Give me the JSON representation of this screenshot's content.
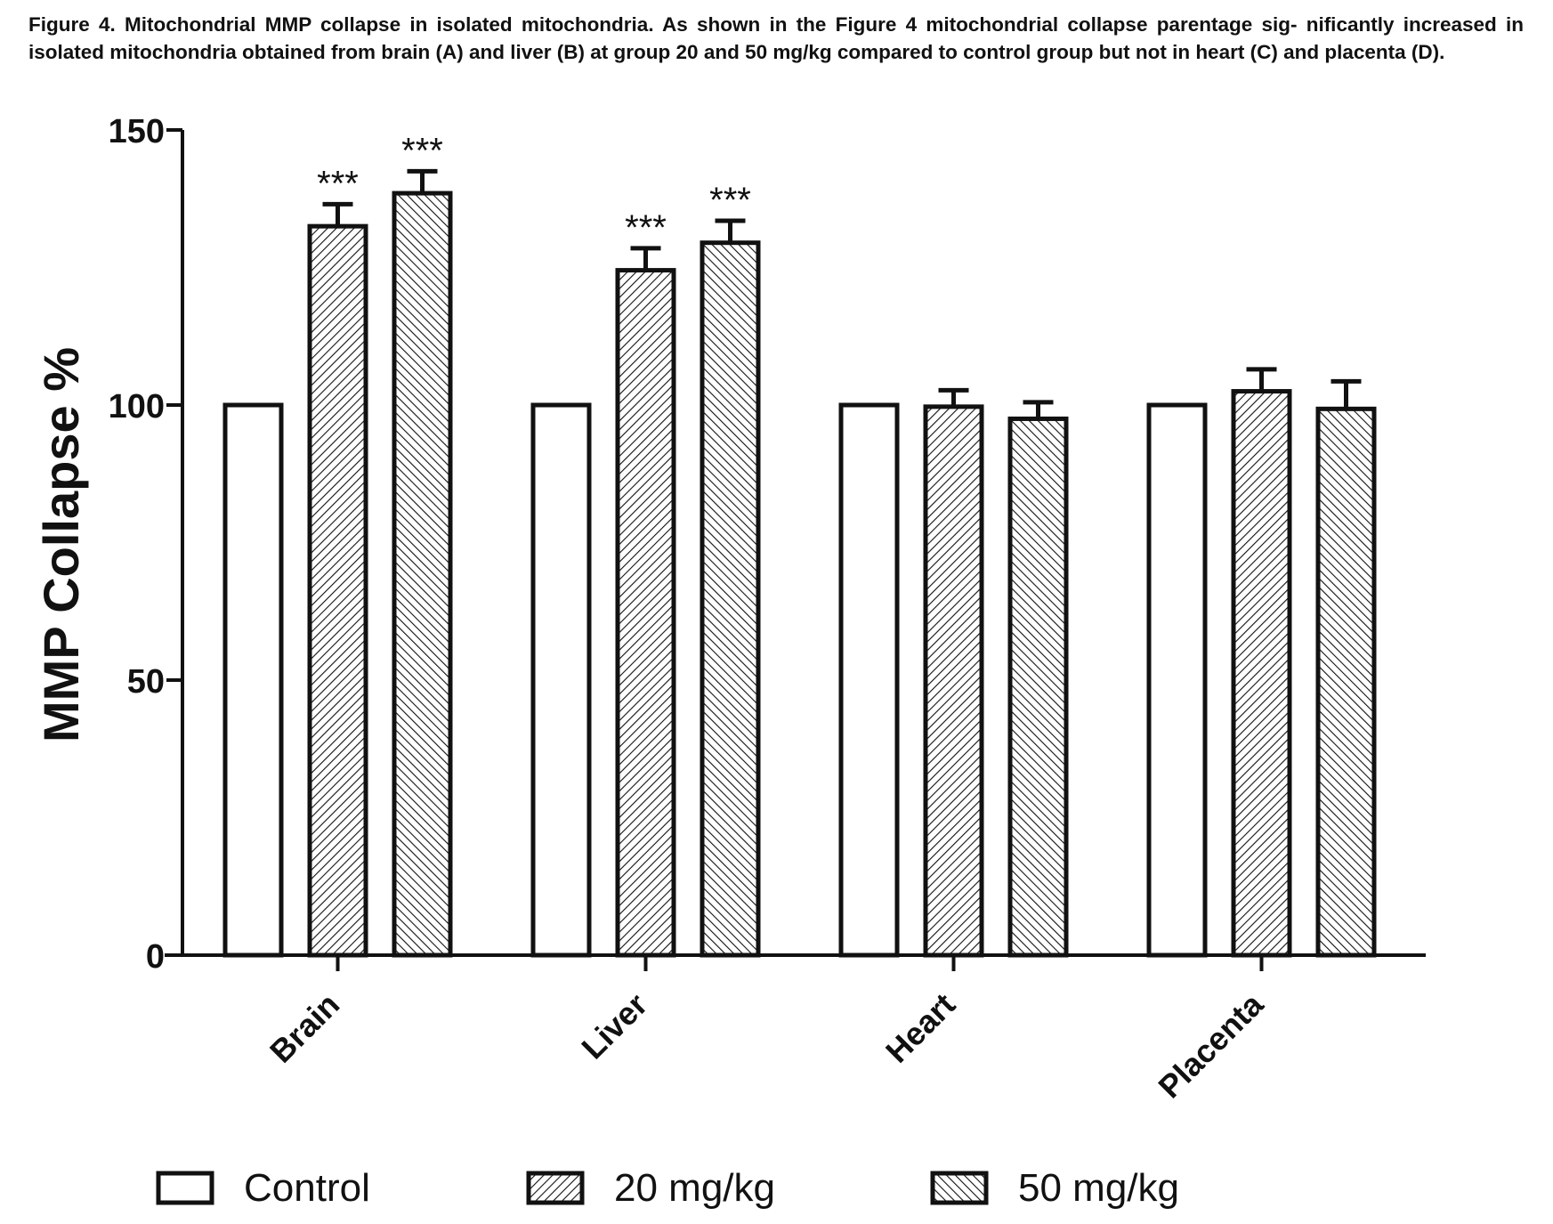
{
  "figure": {
    "caption": "Figure 4. Mitochondrial MMP collapse in isolated mitochondria. As shown in the Figure 4 mitochondrial collapse parentage sig- nificantly increased in isolated mitochondria obtained from brain (A) and liver (B) at group 20 and 50 mg/kg compared to control group but not in heart (C) and placenta (D)."
  },
  "chart_data": {
    "type": "bar",
    "title": "",
    "xlabel": "",
    "ylabel": "MMP Collapse %",
    "ylim": [
      0,
      150
    ],
    "yticks": [
      0,
      50,
      100,
      150
    ],
    "categories": [
      "Brain",
      "Liver",
      "Heart",
      "Placenta"
    ],
    "series": [
      {
        "name": "Control",
        "pattern": "none",
        "values": [
          100,
          100,
          100,
          100
        ],
        "errors": [
          0,
          0,
          0,
          0
        ],
        "annotations": [
          "",
          "",
          "",
          ""
        ]
      },
      {
        "name": "20 mg/kg",
        "pattern": "diagonal-forward",
        "values": [
          132.5,
          124.5,
          99.7,
          102.5
        ],
        "errors": [
          4,
          4,
          3,
          4
        ],
        "annotations": [
          "***",
          "***",
          "",
          ""
        ]
      },
      {
        "name": "50 mg/kg",
        "pattern": "diagonal-back",
        "values": [
          138.5,
          129.5,
          97.5,
          99.3
        ],
        "errors": [
          4,
          4,
          3,
          5
        ],
        "annotations": [
          "***",
          "***",
          "",
          ""
        ]
      }
    ],
    "grid": false,
    "legend_position": "bottom",
    "colors": {
      "stroke": "#111111",
      "fill": "#ffffff"
    }
  }
}
